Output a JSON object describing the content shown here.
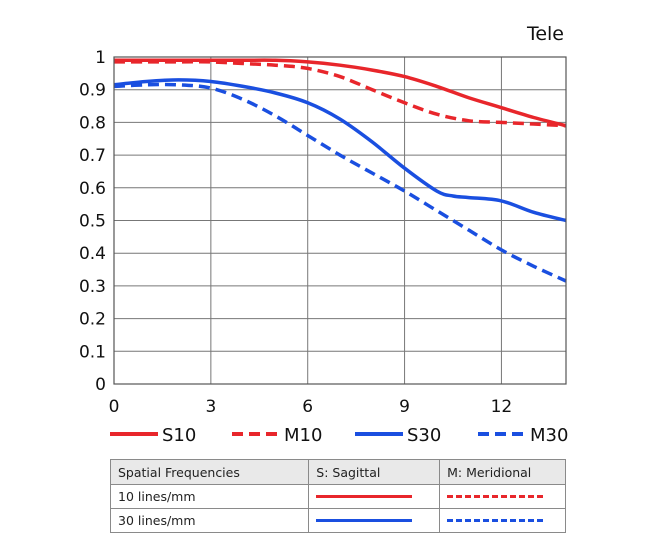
{
  "chart_data": {
    "type": "line",
    "title": "Tele",
    "xlim": [
      0,
      14
    ],
    "ylim": [
      0,
      1
    ],
    "x_ticks": [
      "0",
      "3",
      "6",
      "9",
      "12"
    ],
    "y_ticks": [
      "0",
      "0.1",
      "0.2",
      "0.3",
      "0.4",
      "0.5",
      "0.6",
      "0.7",
      "0.8",
      "0.9",
      "1"
    ],
    "grid": true,
    "series": [
      {
        "name": "S10",
        "color": "#e8262b",
        "style": "solid",
        "x": [
          0,
          1,
          2,
          3,
          4,
          5,
          6,
          7,
          8,
          9,
          10,
          11,
          12,
          13,
          14
        ],
        "y": [
          0.99,
          0.99,
          0.99,
          0.99,
          0.99,
          0.99,
          0.985,
          0.975,
          0.96,
          0.94,
          0.91,
          0.875,
          0.845,
          0.815,
          0.79
        ]
      },
      {
        "name": "M10",
        "color": "#e8262b",
        "style": "dashed",
        "x": [
          0,
          1,
          2,
          3,
          4,
          5,
          6,
          7,
          8,
          9,
          10,
          11,
          12,
          13,
          14
        ],
        "y": [
          0.985,
          0.985,
          0.985,
          0.985,
          0.98,
          0.975,
          0.965,
          0.94,
          0.9,
          0.86,
          0.825,
          0.805,
          0.8,
          0.795,
          0.79
        ]
      },
      {
        "name": "S30",
        "color": "#1a4fe0",
        "style": "solid",
        "x": [
          0,
          1,
          2,
          3,
          4,
          5,
          6,
          7,
          8,
          9,
          10,
          10.5,
          11,
          12,
          13,
          14
        ],
        "y": [
          0.915,
          0.925,
          0.93,
          0.925,
          0.91,
          0.89,
          0.86,
          0.81,
          0.74,
          0.66,
          0.59,
          0.575,
          0.57,
          0.56,
          0.525,
          0.5
        ]
      },
      {
        "name": "M30",
        "color": "#1a4fe0",
        "style": "dashed",
        "x": [
          0,
          1,
          2,
          3,
          4,
          5,
          6,
          7,
          8,
          9,
          10,
          11,
          12,
          13,
          14
        ],
        "y": [
          0.91,
          0.915,
          0.915,
          0.905,
          0.87,
          0.82,
          0.76,
          0.7,
          0.645,
          0.59,
          0.53,
          0.47,
          0.41,
          0.36,
          0.315
        ]
      }
    ]
  },
  "key_table": {
    "header": {
      "col1": "Spatial Frequencies",
      "col2": "S: Sagittal",
      "col3": "M: Meridional"
    },
    "rows": [
      {
        "label": "10 lines/mm",
        "color": "#e8262b"
      },
      {
        "label": "30 lines/mm",
        "color": "#1a4fe0"
      }
    ]
  }
}
